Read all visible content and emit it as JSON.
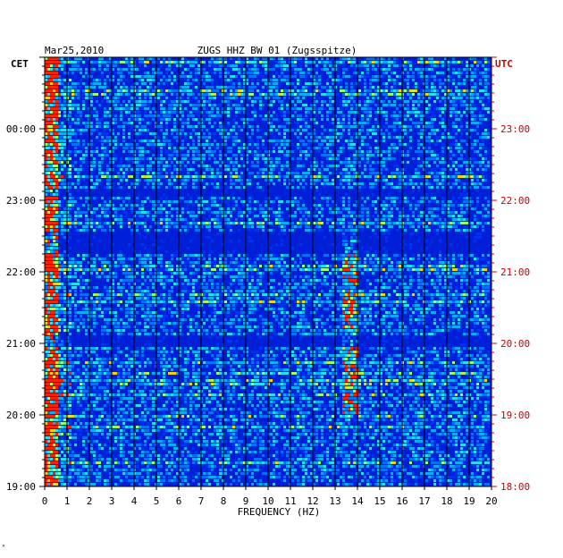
{
  "header": {
    "date": "Mar25,2010",
    "station": "ZUGS HHZ BW 01 (Zugsspitze)",
    "left_zone": "CET",
    "right_zone": "UTC"
  },
  "chart_data": {
    "type": "heatmap",
    "title": "ZUGS HHZ BW 01 (Zugsspitze)",
    "date": "Mar25,2010",
    "xlabel": "FREQUENCY (HZ)",
    "xlim": [
      0,
      20
    ],
    "x_ticks": [
      "0",
      "1",
      "2",
      "3",
      "4",
      "5",
      "6",
      "7",
      "8",
      "9",
      "10",
      "11",
      "12",
      "13",
      "14",
      "15",
      "16",
      "17",
      "18",
      "19",
      "20"
    ],
    "y_left_label": "CET",
    "y_right_label": "UTC",
    "y_left_ticks": [
      "00:00",
      "23:00",
      "22:00",
      "21:00",
      "20:00",
      "19:00"
    ],
    "y_right_ticks": [
      "23:00",
      "22:00",
      "21:00",
      "20:00",
      "19:00",
      "18:00"
    ],
    "colors": {
      "background": "#0020d8",
      "low": "#0000b0",
      "mid": "#00c8ff",
      "high": "#ff0000",
      "right_axis": "#cc0000"
    }
  }
}
